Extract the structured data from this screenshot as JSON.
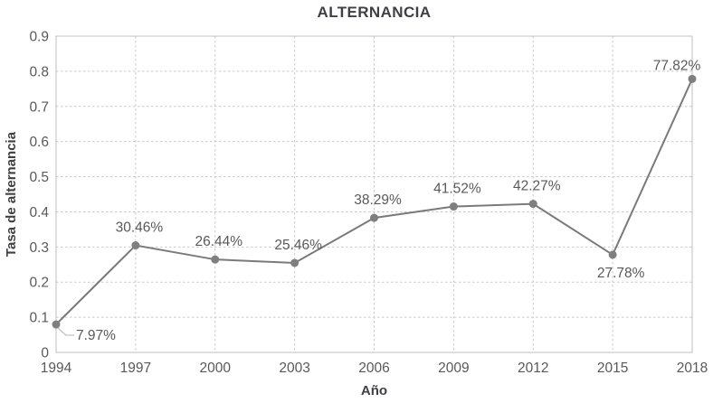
{
  "chart_data": {
    "type": "line",
    "title": "ALTERNANCIA",
    "xlabel": "Año",
    "ylabel": "Tasa de alternancia",
    "categories": [
      "1994",
      "1997",
      "2000",
      "2003",
      "2006",
      "2009",
      "2012",
      "2015",
      "2018"
    ],
    "series": [
      {
        "name": "Tasa de alternancia",
        "values": [
          0.0797,
          0.3046,
          0.2644,
          0.2546,
          0.3829,
          0.4152,
          0.4227,
          0.2778,
          0.7782
        ]
      }
    ],
    "point_labels": [
      "7.97%",
      "30.46%",
      "26.44%",
      "25.46%",
      "38.29%",
      "41.52%",
      "42.27%",
      "27.78%",
      "77.82%"
    ],
    "ylim": [
      0,
      0.9
    ],
    "ytick_labels": [
      "0",
      "0.1",
      "0.2",
      "0.3",
      "0.4",
      "0.5",
      "0.6",
      "0.7",
      "0.8",
      "0.9"
    ],
    "grid": true,
    "legend": "none",
    "label_positions": [
      "right-leader",
      "above",
      "above",
      "above",
      "above",
      "above",
      "above",
      "below",
      "above-left"
    ],
    "colors": {
      "line": "#7a7a7a",
      "marker": "#7f7f7f",
      "grid": "#c9c9c9",
      "border": "#bfbfbf",
      "leader": "#b3b3b3",
      "title": "#3f4045",
      "axis_title": "#3f4045",
      "tick_label": "#595959",
      "data_label": "#595959",
      "background": "#ffffff"
    }
  }
}
